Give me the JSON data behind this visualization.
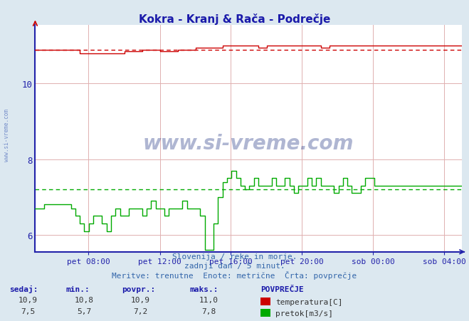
{
  "title": "Kokra - Kranj & Rača - Podrečje",
  "bg_color": "#dce8f0",
  "plot_bg_color": "#ffffff",
  "axis_color": "#2222aa",
  "text_color": "#3366aa",
  "subtitle1": "Slovenija / reke in morje.",
  "subtitle2": "zadnji dan / 5 minut.",
  "subtitle3": "Meritve: trenutne  Enote: metrične  Črta: povprečje",
  "xtick_labels": [
    "pet 08:00",
    "pet 12:00",
    "pet 16:00",
    "pet 20:00",
    "sob 00:00",
    "sob 04:00"
  ],
  "ylim": [
    5.55,
    11.55
  ],
  "yticks": [
    6,
    8,
    10
  ],
  "temp_color": "#cc0000",
  "flow_color": "#00aa00",
  "avg_temp": 10.9,
  "avg_flow": 7.2,
  "legend_title": "POVPREČJE",
  "legend_temp_label": "temperatura[C]",
  "legend_flow_label": "pretok[m3/s]",
  "watermark": "www.si-vreme.com",
  "stats_headers": [
    "sedaj:",
    "min.:",
    "povpr.:",
    "maks.:"
  ],
  "temp_stats": [
    "10,9",
    "10,8",
    "10,9",
    "11,0"
  ],
  "flow_stats": [
    "7,5",
    "5,7",
    "7,2",
    "7,8"
  ]
}
